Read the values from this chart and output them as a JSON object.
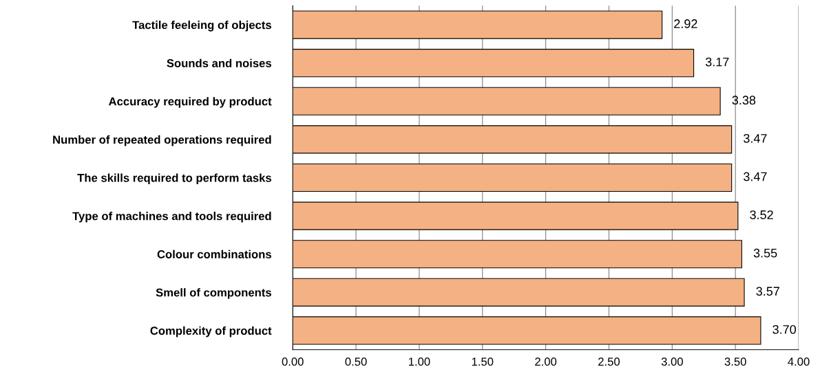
{
  "chart_data": {
    "type": "bar",
    "orientation": "horizontal",
    "categories": [
      "Tactile feeleing of objects",
      "Sounds and noises",
      "Accuracy required by product",
      "Number of repeated operations required",
      "The skills required to perform tasks",
      "Type of machines and tools required",
      "Colour combinations",
      "Smell of components",
      "Complexity of product"
    ],
    "values": [
      2.92,
      3.17,
      3.38,
      3.47,
      3.47,
      3.52,
      3.55,
      3.57,
      3.7
    ],
    "value_labels": [
      "2.92",
      "3.17",
      "3.38",
      "3.47",
      "3.47",
      "3.52",
      "3.55",
      "3.57",
      "3.70"
    ],
    "color": "#f4b183",
    "xlim": [
      0,
      4
    ],
    "xticks": [
      {
        "value": 0,
        "label": "0.00"
      },
      {
        "value": 0.5,
        "label": "0.50"
      },
      {
        "value": 1,
        "label": "1.00"
      },
      {
        "value": 1.5,
        "label": "1.50"
      },
      {
        "value": 2,
        "label": "2.00"
      },
      {
        "value": 2.5,
        "label": "2.50"
      },
      {
        "value": 3,
        "label": "3.00"
      },
      {
        "value": 3.5,
        "label": "3.50"
      },
      {
        "value": 4,
        "label": "4.00"
      }
    ],
    "grid": "x"
  }
}
